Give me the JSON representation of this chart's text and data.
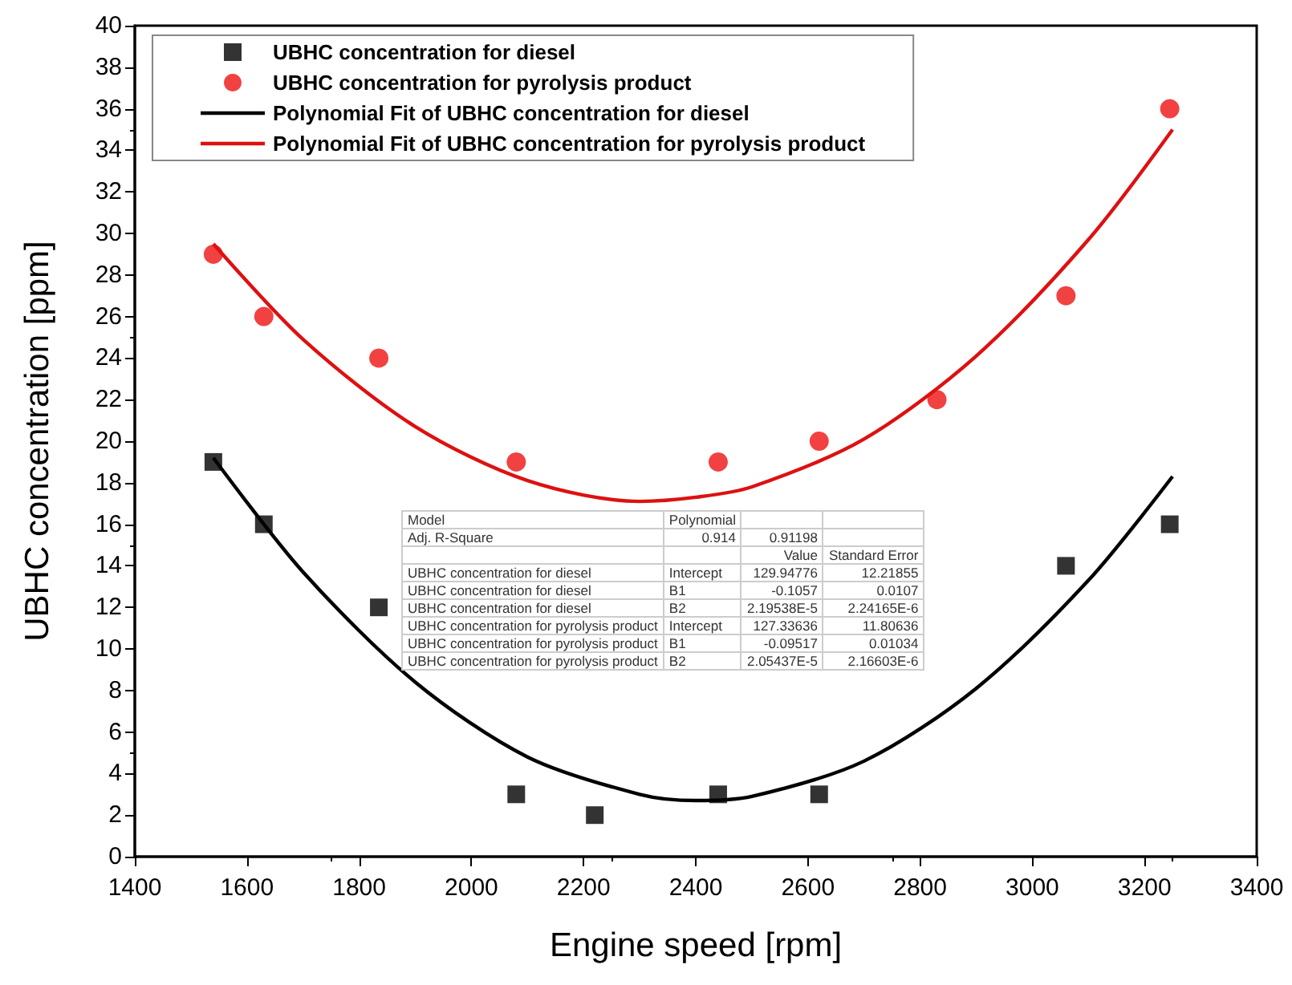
{
  "chart_data": {
    "type": "scatter",
    "xlabel": "Engine speed [rpm]",
    "ylabel": "UBHC concentration [ppm]",
    "xlim": [
      1400,
      3400
    ],
    "xticks": [
      1400,
      1600,
      1800,
      2000,
      2200,
      2400,
      2600,
      2800,
      3000,
      3200,
      3400
    ],
    "ylim": [
      0,
      40
    ],
    "yticks": [
      0,
      2,
      4,
      6,
      8,
      10,
      12,
      14,
      16,
      18,
      20,
      22,
      24,
      26,
      28,
      30,
      32,
      34,
      36,
      38,
      40
    ],
    "grid": false,
    "legend": "top left",
    "series": [
      {
        "name": "UBHC concentration for diesel",
        "marker": "square",
        "color": "#000000",
        "x": [
          1540,
          1630,
          1835,
          2080,
          2220,
          2440,
          2620,
          3060,
          3245
        ],
        "values": [
          19,
          16,
          12,
          3,
          2,
          3,
          3,
          14,
          16
        ]
      },
      {
        "name": "UBHC concentration for pyrolysis product",
        "marker": "circle",
        "color": "#ee1111",
        "x": [
          1540,
          1630,
          1835,
          2080,
          2440,
          2620,
          2830,
          3060,
          3245
        ],
        "values": [
          29,
          26,
          24,
          19,
          19,
          20,
          22,
          27,
          36
        ]
      },
      {
        "name": "Polynomial Fit of UBHC concentration for diesel",
        "type": "line",
        "marker": "none",
        "color": "#000000",
        "x": [
          1540,
          1700,
          1900,
          2100,
          2300,
          2400,
          2500,
          2700,
          2900,
          3100,
          3250
        ],
        "values": [
          19.2,
          13.7,
          8.4,
          4.8,
          3.0,
          2.7,
          2.9,
          4.6,
          8.1,
          13.3,
          18.3
        ]
      },
      {
        "name": "Polynomial Fit of UBHC concentration for pyrolysis product",
        "type": "line",
        "marker": "none",
        "color": "#dd1111",
        "x": [
          1540,
          1700,
          1900,
          2100,
          2300,
          2400,
          2500,
          2700,
          2900,
          3100,
          3250
        ],
        "values": [
          29.5,
          24.9,
          20.7,
          18.1,
          17.1,
          17.3,
          17.8,
          20.1,
          24.1,
          29.7,
          35.0
        ]
      }
    ],
    "annotations": [
      "Model",
      "Polynomial",
      null,
      null,
      "Adj. R-Square",
      "0.914",
      "0.91198",
      null,
      null,
      null,
      "Value",
      "Standard Error",
      "UBHC concentration for diesel",
      "Intercept",
      "129.94776",
      "12.21855",
      "UBHC concentration for diesel",
      "B1",
      "-0.1057",
      "0.0107",
      "UBHC concentration for diesel",
      "B2",
      "2.19538E-5",
      "2.24165E-6",
      "UBHC concentration for pyrolysis product",
      "Intercept",
      "127.33636",
      "11.80636",
      "UBHC concentration for pyrolysis product",
      "B1",
      "-0.09517",
      "0.01034",
      "UBHC concentration for pyrolysis product",
      "B2",
      "2.05437E-5",
      "2.16603E-6"
    ]
  }
}
